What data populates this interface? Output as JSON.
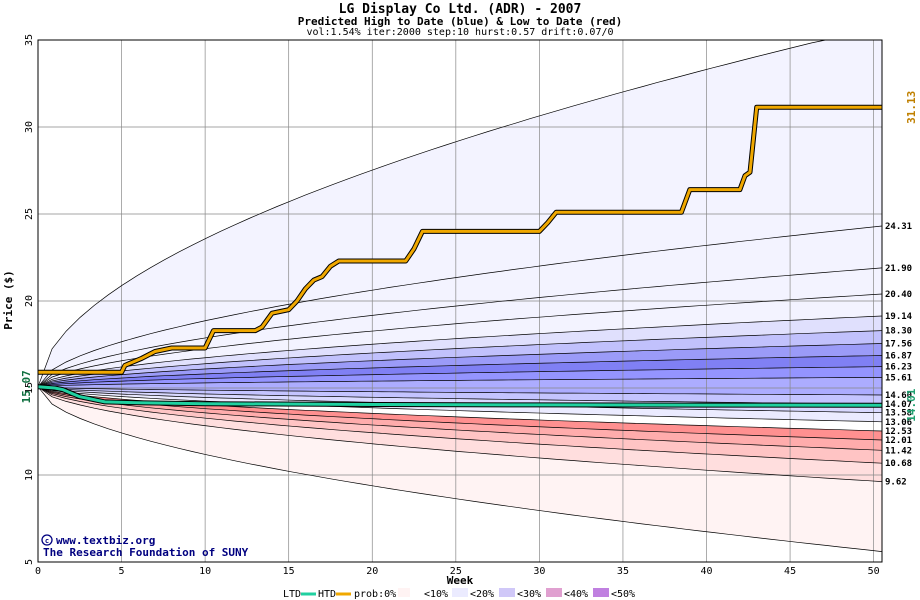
{
  "chart_data": {
    "type": "area",
    "title": "LG Display Co Ltd. (ADR) - 2007",
    "subtitle": "Predicted High to Date (blue) &  Low to Date (red)",
    "params": "vol:1.54% iter:2000 step:10 hurst:0.57 drift:0.07/0",
    "xlabel": "Week",
    "ylabel": "Price ($)",
    "xlim": [
      0,
      50.5
    ],
    "ylim": [
      5,
      35
    ],
    "xticks": [
      0,
      5,
      10,
      15,
      20,
      25,
      30,
      35,
      40,
      45,
      50
    ],
    "yticks": [
      5,
      10,
      15,
      20,
      25,
      30,
      35
    ],
    "grid": true,
    "start_price": "15.07",
    "current_low_label": "14.01",
    "current_high_label": "31.13",
    "start_value": 15.07,
    "band_end_values": [
      5.6,
      9.62,
      10.68,
      11.42,
      12.01,
      12.53,
      13.06,
      13.58,
      14.07,
      14.6,
      15.61,
      16.23,
      16.87,
      17.56,
      18.3,
      19.14,
      20.4,
      21.9,
      24.31,
      35.8
    ],
    "right_labels": [
      "24.31",
      "21.90",
      "20.40",
      "19.14",
      "18.30",
      "17.56",
      "16.87",
      "16.23",
      "15.61",
      "14.60",
      "14.07",
      "13.58",
      "13.06",
      "12.53",
      "12.01",
      "11.42",
      "10.68",
      "9.62"
    ],
    "band_fill_colors_low": [
      "#fff3f3",
      "#ffdede",
      "#ffc4c4",
      "#ffacac",
      "#ff9090",
      "#ff7b7b"
    ],
    "band_fill_colors_mid": [
      "#fff3f3",
      "#ffdede",
      "#ffc4c4",
      "#ffacac",
      "#ff9090",
      "#ffffff",
      "#ebebff",
      "#d9d9ff",
      "#c4c4ff",
      "#acacff",
      "#9494ff",
      "#8080f4",
      "#9b9bf8",
      "#c1c1fc",
      "#e0e0fd",
      "#f3f3ff",
      "#f3f3ff",
      "#f3f3ff",
      "#f3f3ff"
    ],
    "series": [
      {
        "name": "HTD",
        "color": "#f0a800",
        "x": [
          0,
          2,
          5,
          5.2,
          6.2,
          7,
          8,
          10,
          10.5,
          12,
          13,
          13.4,
          14,
          15,
          15.5,
          16,
          16.5,
          17,
          17.5,
          18,
          19,
          20,
          21,
          22,
          22.5,
          23,
          24,
          30,
          30.5,
          31,
          35,
          38.5,
          39,
          41,
          42,
          42.3,
          42.6,
          43,
          45,
          50.5
        ],
        "y": [
          15.9,
          15.9,
          15.9,
          16.3,
          16.7,
          17.1,
          17.3,
          17.3,
          18.3,
          18.3,
          18.3,
          18.5,
          19.3,
          19.5,
          20.0,
          20.7,
          21.2,
          21.4,
          22.0,
          22.3,
          22.3,
          22.3,
          22.3,
          22.3,
          23.0,
          24.0,
          24.0,
          24.0,
          24.5,
          25.1,
          25.1,
          25.1,
          26.4,
          26.4,
          26.4,
          27.2,
          27.4,
          31.13,
          31.13,
          31.13
        ]
      },
      {
        "name": "LTD",
        "color": "#20d0a0",
        "x": [
          0,
          1,
          1.5,
          2,
          2.5,
          3,
          3.5,
          4,
          6,
          10,
          20,
          30,
          40,
          50.5
        ],
        "y": [
          15.07,
          15.0,
          14.9,
          14.7,
          14.5,
          14.4,
          14.3,
          14.2,
          14.15,
          14.1,
          14.05,
          14.03,
          14.02,
          14.01
        ]
      }
    ]
  },
  "footer": {
    "credit_line1": "www.textbiz.org",
    "credit_line2": "The Research Foundation of SUNY",
    "legend": {
      "ltd": "LTD",
      "htd": "HTD",
      "prob_prefix": "prob:0%",
      "items": [
        "<10%",
        "<20%",
        "<30%",
        "<40%",
        "<50%"
      ]
    }
  }
}
